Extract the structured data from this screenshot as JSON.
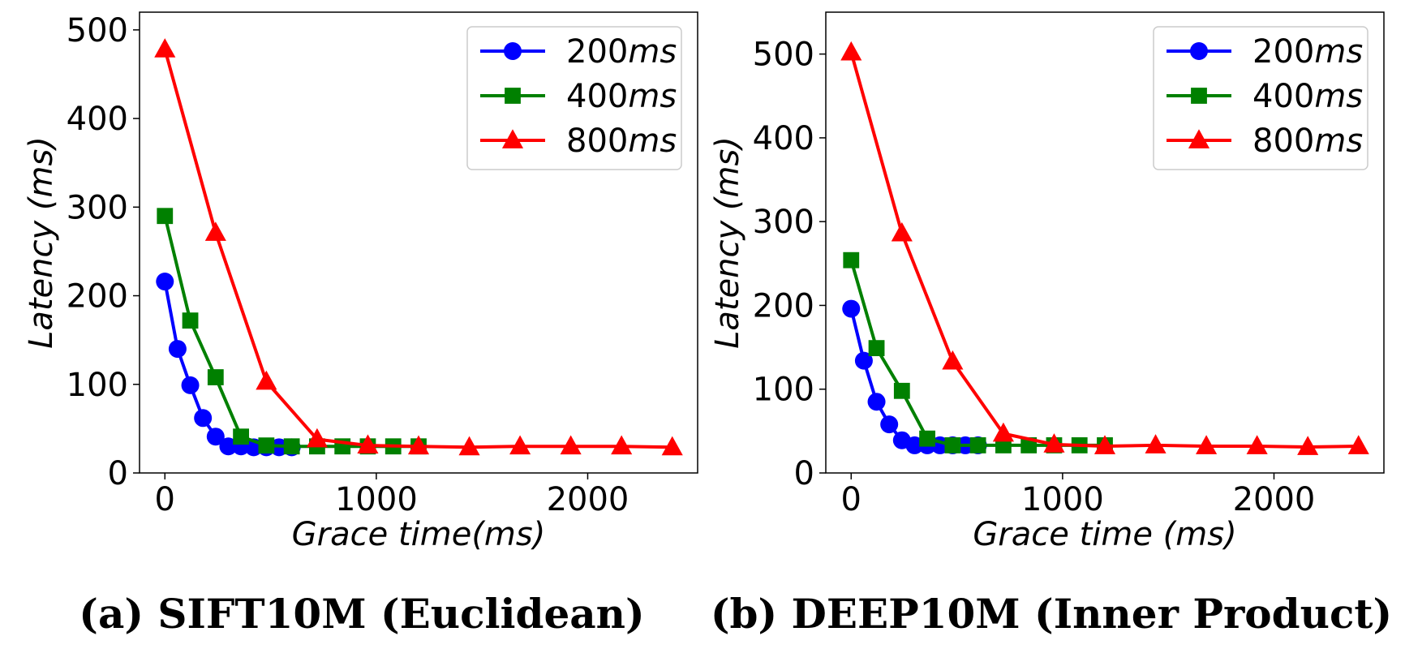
{
  "chart_data": [
    {
      "type": "line",
      "caption": "(a) SIFT10M (Euclidean)",
      "xlabel": "Grace time(ms)",
      "ylabel": "Latency (ms)",
      "xlim": [
        -120,
        2520
      ],
      "ylim": [
        0,
        520
      ],
      "xticks": [
        0,
        1000,
        2000
      ],
      "yticks": [
        0,
        100,
        200,
        300,
        400,
        500
      ],
      "legend_position": "top-right",
      "series": [
        {
          "name": "200ms",
          "color": "#0000ff",
          "marker": "circle",
          "x": [
            0,
            60,
            120,
            180,
            240,
            300,
            360,
            420,
            480,
            540,
            600
          ],
          "y": [
            216,
            140,
            99,
            62,
            41,
            30,
            30,
            29,
            29,
            29,
            29
          ]
        },
        {
          "name": "400ms",
          "color": "#008000",
          "marker": "square",
          "x": [
            0,
            120,
            240,
            360,
            480,
            600,
            720,
            840,
            960,
            1080,
            1200
          ],
          "y": [
            290,
            172,
            108,
            41,
            31,
            30,
            30,
            30,
            30,
            30,
            30
          ]
        },
        {
          "name": "800ms",
          "color": "#ff0000",
          "marker": "triangle",
          "x": [
            0,
            240,
            480,
            720,
            960,
            1200,
            1440,
            1680,
            1920,
            2160,
            2400
          ],
          "y": [
            478,
            271,
            103,
            38,
            31,
            30,
            29,
            30,
            30,
            30,
            29
          ]
        }
      ]
    },
    {
      "type": "line",
      "caption": "(b) DEEP10M (Inner Product)",
      "xlabel": "Grace time (ms)",
      "ylabel": "Latency (ms)",
      "xlim": [
        -120,
        2520
      ],
      "ylim": [
        0,
        550
      ],
      "xticks": [
        0,
        1000,
        2000
      ],
      "yticks": [
        0,
        100,
        200,
        300,
        400,
        500
      ],
      "legend_position": "top-right",
      "series": [
        {
          "name": "200ms",
          "color": "#0000ff",
          "marker": "circle",
          "x": [
            0,
            60,
            120,
            180,
            240,
            300,
            360,
            420,
            480,
            540,
            600
          ],
          "y": [
            196,
            134,
            85,
            58,
            39,
            33,
            33,
            33,
            33,
            33,
            33
          ]
        },
        {
          "name": "400ms",
          "color": "#008000",
          "marker": "square",
          "x": [
            0,
            120,
            240,
            360,
            480,
            600,
            720,
            840,
            960,
            1080,
            1200
          ],
          "y": [
            254,
            149,
            98,
            41,
            33,
            33,
            33,
            33,
            33,
            33,
            33
          ]
        },
        {
          "name": "800ms",
          "color": "#ff0000",
          "marker": "triangle",
          "x": [
            0,
            240,
            480,
            720,
            960,
            1200,
            1440,
            1680,
            1920,
            2160,
            2400
          ],
          "y": [
            502,
            286,
            133,
            47,
            34,
            32,
            33,
            32,
            32,
            31,
            32
          ]
        }
      ]
    }
  ]
}
